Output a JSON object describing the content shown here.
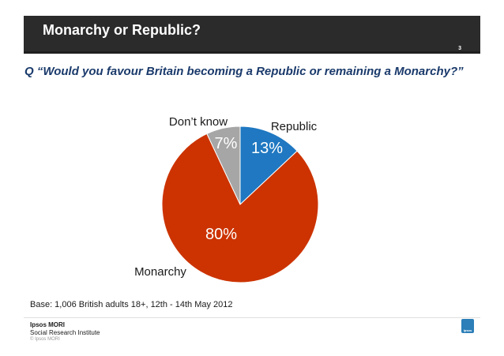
{
  "header": {
    "title": "Monarchy or Republic?",
    "page_number": "3"
  },
  "question": "Q “Would you favour Britain becoming a Republic or remaining a Monarchy?”",
  "chart_data": {
    "type": "pie",
    "slices": [
      {
        "label": "Republic",
        "value": 13,
        "value_label": "13%",
        "color": "#1f78c1"
      },
      {
        "label": "Monarchy",
        "value": 80,
        "value_label": "80%",
        "color": "#cc3300"
      },
      {
        "label": "Don’t know",
        "value": 7,
        "value_label": "7%",
        "color": "#a6a6a6"
      }
    ],
    "start": "12 o'clock",
    "direction": "clockwise"
  },
  "footer": {
    "base": "Base: 1,006 British adults 18+, 12th - 14th May 2012",
    "logo_name": "Ipsos MORI",
    "logo_sub": "Social Research Institute",
    "copyright": "© Ipsos MORI",
    "badge_text": "Ipsos"
  }
}
